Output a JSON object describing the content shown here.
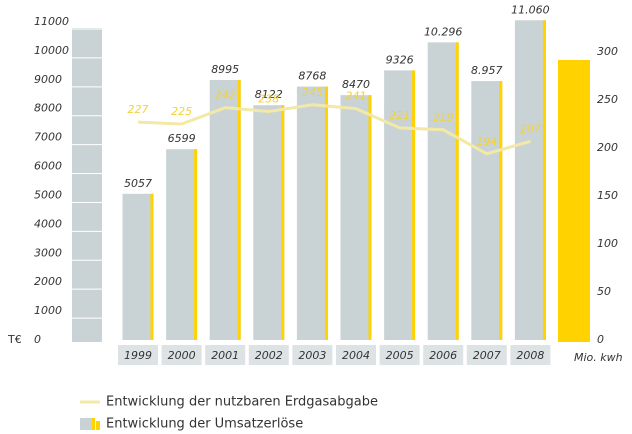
{
  "chart_data": {
    "type": "bar",
    "categories": [
      "1999",
      "2000",
      "2001",
      "2002",
      "2003",
      "2004",
      "2005",
      "2006",
      "2007",
      "2008"
    ],
    "series": [
      {
        "name": "Entwicklung der Umsatzerlöse",
        "color": "#c9d3d6",
        "edge_color": "#ffd200",
        "values": [
          5057,
          6599,
          8995,
          8122,
          8768,
          8470,
          9326,
          10296,
          8957,
          11060
        ],
        "value_labels": [
          "5057",
          "6599",
          "8995",
          "8122",
          "8768",
          "8470",
          "9326",
          "10.296",
          "8.957",
          "11.060"
        ]
      },
      {
        "name": "Entwicklung der nutzbaren Erdgasabgabe",
        "type": "line",
        "axis": "y2",
        "color": "#f3e9a6",
        "label_color": "#f2d23a",
        "values": [
          227,
          225,
          242,
          238,
          245,
          241,
          221,
          219,
          194,
          207
        ]
      }
    ],
    "ylabel": "T€",
    "y2label": "Mio. kwh",
    "ylim": [
      0,
      11000
    ],
    "yticks": [
      0,
      1000,
      2000,
      3000,
      4000,
      5000,
      6000,
      7000,
      8000,
      9000,
      10000,
      11000
    ],
    "y2lim": [
      0,
      300
    ],
    "y2ticks": [
      0,
      50,
      100,
      150,
      200,
      250,
      300
    ]
  }
}
